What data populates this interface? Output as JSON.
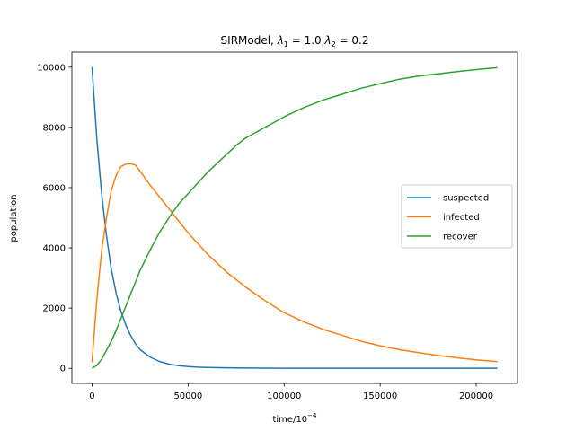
{
  "chart_data": {
    "type": "line",
    "title": {
      "prefix": "SIRModel, ",
      "l1_sym": "λ",
      "l1_sub": "1",
      "l1_rest": " = 1.0,",
      "l2_sym": "λ",
      "l2_sub": "2",
      "l2_rest": " = 0.2"
    },
    "xlabel": {
      "base": "time/10",
      "exp": "−4"
    },
    "ylabel": "population",
    "xlim": [
      -10500,
      221500
    ],
    "ylim": [
      -500,
      10500
    ],
    "xticks": [
      0,
      50000,
      100000,
      150000,
      200000
    ],
    "xtick_labels": [
      "0",
      "50000",
      "100000",
      "150000",
      "200000"
    ],
    "yticks": [
      0,
      2000,
      4000,
      6000,
      8000,
      10000
    ],
    "ytick_labels": [
      "0",
      "2000",
      "4000",
      "6000",
      "8000",
      "10000"
    ],
    "grid": false,
    "legend_placement": "center-right",
    "series": [
      {
        "name": "suspected",
        "color": "#1f77b4",
        "x": [
          0,
          2500,
          5000,
          7500,
          10000,
          12500,
          15000,
          17500,
          20000,
          22500,
          25000,
          30000,
          35000,
          40000,
          45000,
          50000,
          55000,
          60000,
          70000,
          80000,
          100000,
          150000,
          211000
        ],
        "y": [
          10000,
          7600,
          5800,
          4400,
          3300,
          2500,
          1900,
          1450,
          1100,
          820,
          620,
          380,
          230,
          140,
          90,
          60,
          40,
          30,
          20,
          10,
          5,
          3,
          3
        ]
      },
      {
        "name": "infected",
        "color": "#ff7f0e",
        "x": [
          0,
          2500,
          5000,
          7500,
          10000,
          12500,
          15000,
          17500,
          20000,
          22500,
          25000,
          30000,
          35000,
          40000,
          45000,
          50000,
          55000,
          60000,
          65000,
          70000,
          75000,
          80000,
          90000,
          100000,
          110000,
          120000,
          130000,
          140000,
          150000,
          160000,
          170000,
          180000,
          190000,
          200000,
          211000
        ],
        "y": [
          200,
          2300,
          3900,
          5000,
          5900,
          6400,
          6700,
          6780,
          6800,
          6750,
          6550,
          6100,
          5700,
          5300,
          4900,
          4500,
          4150,
          3800,
          3500,
          3200,
          2950,
          2700,
          2250,
          1850,
          1550,
          1300,
          1100,
          900,
          750,
          620,
          520,
          430,
          350,
          280,
          220
        ]
      },
      {
        "name": "recover",
        "color": "#2ca02c",
        "x": [
          0,
          2500,
          5000,
          7500,
          10000,
          12500,
          15000,
          17500,
          20000,
          22500,
          25000,
          30000,
          35000,
          40000,
          45000,
          50000,
          55000,
          60000,
          65000,
          70000,
          75000,
          80000,
          90000,
          100000,
          110000,
          120000,
          130000,
          140000,
          150000,
          160000,
          170000,
          180000,
          190000,
          200000,
          211000
        ],
        "y": [
          0,
          100,
          300,
          600,
          900,
          1250,
          1650,
          2050,
          2450,
          2850,
          3250,
          3900,
          4500,
          5000,
          5450,
          5800,
          6150,
          6500,
          6800,
          7100,
          7400,
          7650,
          8000,
          8350,
          8650,
          8900,
          9100,
          9300,
          9450,
          9600,
          9700,
          9780,
          9850,
          9920,
          9980
        ]
      }
    ]
  }
}
